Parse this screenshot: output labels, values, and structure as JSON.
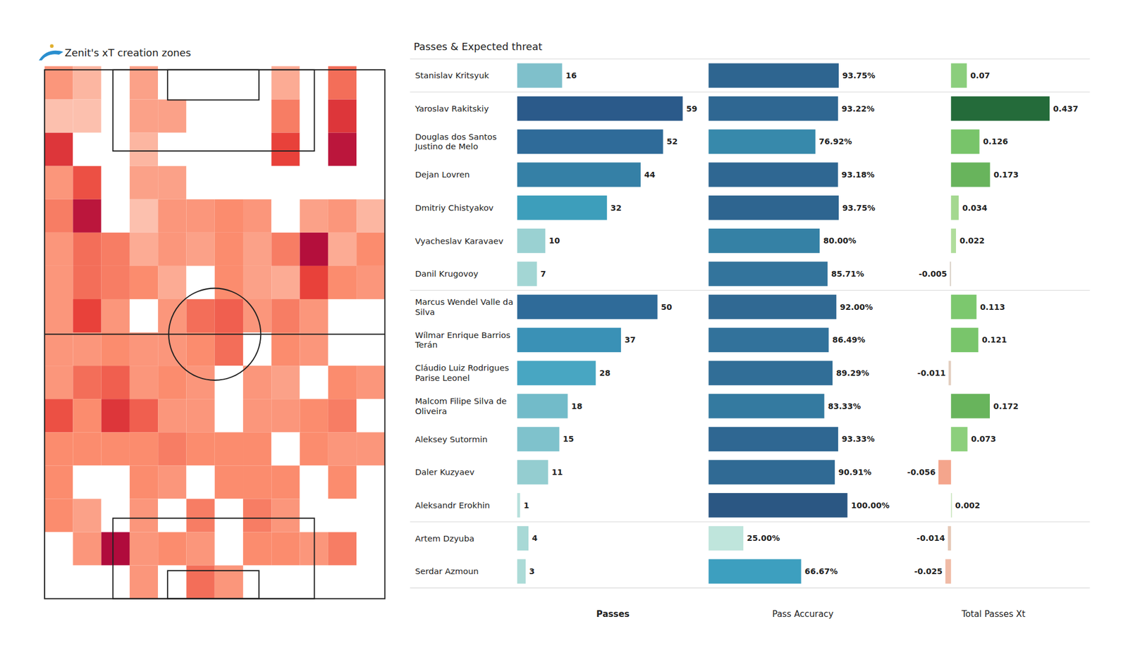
{
  "chart_data": [
    {
      "type": "heatmap",
      "title": "Zenit's xT creation zones",
      "zlim": [
        0,
        1
      ],
      "tick_labels": false,
      "cells": [
        [
          0.45,
          0.3,
          0,
          0.4,
          0,
          0,
          0,
          0,
          0.35,
          0,
          0.6,
          0
        ],
        [
          0.25,
          0.25,
          0,
          0.4,
          0.4,
          0,
          0,
          0,
          0.55,
          0,
          0.8,
          0
        ],
        [
          0.8,
          0,
          0,
          0.3,
          0,
          0,
          0,
          0,
          0.75,
          0,
          0.95,
          0
        ],
        [
          0.45,
          0.7,
          0,
          0.4,
          0.4,
          0,
          0,
          0,
          0,
          0,
          0,
          0
        ],
        [
          0.55,
          0.95,
          0,
          0.25,
          0.45,
          0.45,
          0.5,
          0.45,
          0,
          0.4,
          0.45,
          0.3
        ],
        [
          0.45,
          0.6,
          0.55,
          0.35,
          0.45,
          0.4,
          0.5,
          0.4,
          0.55,
          0.98,
          0.35,
          0.5
        ],
        [
          0.45,
          0.6,
          0.55,
          0.5,
          0.35,
          0,
          0.5,
          0.4,
          0.35,
          0.75,
          0.5,
          0.45
        ],
        [
          0.45,
          0.75,
          0.45,
          0,
          0.45,
          0.6,
          0.65,
          0.45,
          0.55,
          0.45,
          0,
          0
        ],
        [
          0.45,
          0.45,
          0.5,
          0.45,
          0.45,
          0.5,
          0.6,
          0,
          0.5,
          0.45,
          0,
          0
        ],
        [
          0.45,
          0.6,
          0.65,
          0.45,
          0.5,
          0.45,
          0,
          0.45,
          0.4,
          0,
          0.5,
          0.45
        ],
        [
          0.7,
          0.5,
          0.8,
          0.65,
          0.45,
          0.45,
          0,
          0.45,
          0.45,
          0.5,
          0.55,
          0
        ],
        [
          0.5,
          0.5,
          0.5,
          0.5,
          0.55,
          0.5,
          0.5,
          0.5,
          0,
          0.5,
          0.45,
          0.45
        ],
        [
          0.5,
          0,
          0,
          0.5,
          0.45,
          0,
          0.5,
          0.5,
          0.5,
          0,
          0.5,
          0
        ],
        [
          0.5,
          0.4,
          0,
          0.45,
          0,
          0.55,
          0,
          0.55,
          0.45,
          0,
          0,
          0
        ],
        [
          0,
          0.45,
          1,
          0.45,
          0.5,
          0.45,
          0,
          0.5,
          0.5,
          0.45,
          0.55,
          0
        ],
        [
          0,
          0,
          0,
          0.45,
          0,
          0.6,
          0.45,
          0,
          0,
          0,
          0,
          0
        ]
      ]
    },
    {
      "type": "bar",
      "orientation": "horizontal",
      "title": "Passes & Expected threat",
      "data_labels": true,
      "tick_labels": "y",
      "categories": [
        "Stanislav Kritsyuk",
        "Yaroslav Rakitskiy",
        "Douglas dos Santos\nJustino de Melo",
        "Dejan Lovren",
        "Dmitriy Chistyakov",
        "Vyacheslav Karavaev",
        "Danil Krugovoy",
        "Marcus Wendel Valle da\nSilva",
        "Wílmar Enrique Barrios\nTerán",
        "Cláudio Luiz Rodrigues\nParise Leonel",
        "Malcom Filipe Silva de\nOliveira",
        "Aleksey Sutormin",
        "Daler Kuzyaev",
        "Aleksandr Erokhin",
        "Artem Dzyuba",
        "Serdar Azmoun"
      ],
      "series": [
        {
          "name": "Passes",
          "values": [
            16,
            59,
            52,
            44,
            32,
            10,
            7,
            50,
            37,
            28,
            18,
            15,
            11,
            1,
            4,
            3
          ],
          "colors": [
            "#7fc0cb",
            "#2b5a8a",
            "#2f6b99",
            "#3580a6",
            "#3d9ebb",
            "#9ad1d2",
            "#a3d6d4",
            "#2f6b99",
            "#3a91b6",
            "#48a6c2",
            "#72bbc9",
            "#7fc2cc",
            "#94cdd0",
            "#b7e0dc",
            "#a8d9d6",
            "#acdbd7"
          ]
        },
        {
          "name": "Pass Accuracy",
          "values": [
            93.75,
            93.22,
            76.92,
            93.18,
            93.75,
            80,
            85.71,
            92,
            86.49,
            89.29,
            83.33,
            93.33,
            90.91,
            100,
            25,
            66.67
          ],
          "value_labels": [
            "93.75%",
            "93.22%",
            "76.92%",
            "93.18%",
            "93.75%",
            "80.00%",
            "85.71%",
            "92.00%",
            "86.49%",
            "89.29%",
            "83.33%",
            "93.33%",
            "90.91%",
            "100.00%",
            "25.00%",
            "66.67%"
          ],
          "colors": [
            "#2e6590",
            "#2f6792",
            "#3789ab",
            "#2f6792",
            "#2e6590",
            "#3581a5",
            "#33749c",
            "#306993",
            "#32729b",
            "#316e97",
            "#347aa0",
            "#2f6792",
            "#306a94",
            "#2b5783",
            "#bfe5dc",
            "#3d9fbf"
          ]
        },
        {
          "name": "Total Passes Xt",
          "values": [
            0.07,
            0.437,
            0.126,
            0.173,
            0.034,
            0.022,
            -0.005,
            0.113,
            0.121,
            -0.011,
            0.172,
            0.073,
            -0.056,
            0.002,
            -0.014,
            -0.025
          ],
          "colors": [
            "#8bce7c",
            "#246b3a",
            "#78c46a",
            "#68b45c",
            "#a4d88f",
            "#b0dd9b",
            "#d8cfc4",
            "#7cc86e",
            "#79c56b",
            "#e3cfc0",
            "#68b45c",
            "#8ccf7c",
            "#f4a58c",
            "#c5e3b8",
            "#e6c9b7",
            "#f0bba6"
          ]
        }
      ]
    }
  ]
}
